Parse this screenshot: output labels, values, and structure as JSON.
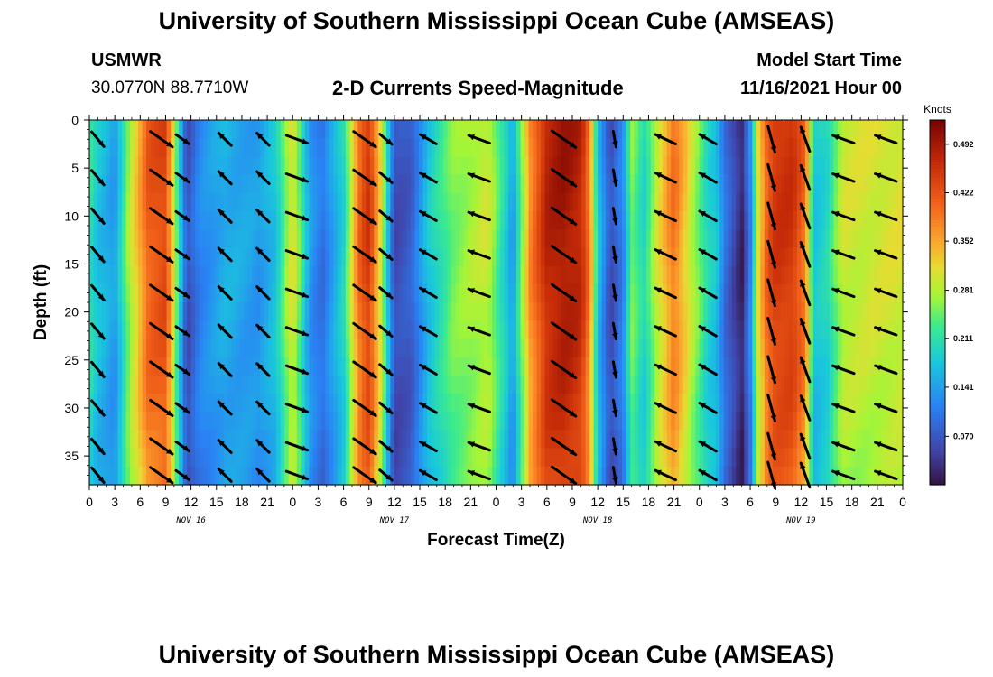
{
  "header": {
    "title_top": "University of Southern Mississippi Ocean Cube (AMSEAS)",
    "station": "USMWR",
    "location": "30.0770N  88.7710W",
    "plot_title": "2-D Currents Speed-Magnitude",
    "model_start_label": "Model Start Time",
    "model_start_value": "11/16/2021 Hour 00",
    "title_bottom": "University of Southern Mississippi Ocean Cube (AMSEAS)"
  },
  "chart_data": {
    "type": "heatmap",
    "title": "2-D Currents Speed-Magnitude",
    "xlabel": "Forecast Time(Z)",
    "ylabel": "Depth (ft)",
    "x_tick_labels": [
      "0",
      "3",
      "6",
      "9",
      "12",
      "15",
      "18",
      "21",
      "0",
      "3",
      "6",
      "9",
      "12",
      "15",
      "18",
      "21",
      "0",
      "3",
      "6",
      "9",
      "12",
      "15",
      "18",
      "21",
      "0",
      "3",
      "6",
      "9",
      "12",
      "15",
      "18",
      "21",
      "0"
    ],
    "day_labels": [
      "NOV 16",
      "NOV 17",
      "NOV 18",
      "NOV 19"
    ],
    "xlim_hours": [
      0,
      96
    ],
    "ylim_ft": [
      0,
      38
    ],
    "y_ticks": [
      0,
      5,
      10,
      15,
      20,
      25,
      30,
      35
    ],
    "colorbar": {
      "unit": "Knots",
      "min": 0.0,
      "max": 0.527,
      "tick_values": [
        0.492,
        0.422,
        0.352,
        0.281,
        0.211,
        0.141,
        0.07
      ],
      "tick_labels": [
        "0.492",
        "0.422",
        "0.352",
        "0.281",
        "0.211",
        "0.141",
        "0.070"
      ]
    },
    "speed_profile": {
      "hours": [
        0,
        1,
        3,
        5,
        7,
        9,
        10,
        11.5,
        13,
        16,
        20,
        22,
        24,
        26,
        27.5,
        30,
        32,
        33,
        34.5,
        36,
        38,
        40,
        43,
        47,
        49,
        50,
        52,
        54,
        56,
        58,
        59,
        60,
        61.5,
        63,
        64,
        65.5,
        67,
        69,
        71,
        73,
        74,
        75,
        77,
        78,
        79,
        80,
        81,
        83,
        84.5,
        85.5,
        87,
        89,
        96
      ],
      "knots": [
        0.22,
        0.18,
        0.14,
        0.3,
        0.42,
        0.44,
        0.3,
        0.06,
        0.12,
        0.16,
        0.14,
        0.18,
        0.32,
        0.14,
        0.1,
        0.2,
        0.42,
        0.46,
        0.3,
        0.06,
        0.08,
        0.18,
        0.26,
        0.3,
        0.2,
        0.14,
        0.38,
        0.48,
        0.5,
        0.48,
        0.4,
        0.18,
        0.06,
        0.12,
        0.26,
        0.2,
        0.3,
        0.4,
        0.3,
        0.2,
        0.18,
        0.1,
        0.02,
        0.12,
        0.32,
        0.42,
        0.46,
        0.46,
        0.4,
        0.18,
        0.2,
        0.3,
        0.31
      ]
    },
    "vectors": {
      "rows_ft": [
        2,
        6,
        10,
        14,
        18,
        22,
        26,
        30,
        34,
        37
      ],
      "note": "Current direction arrows per time column (degrees from east, screen y down) and relative speed",
      "columns": [
        {
          "hour": 1,
          "angle": 50,
          "speed": 0.2
        },
        {
          "hour": 8.5,
          "angle": 35,
          "speed": 0.44
        },
        {
          "hour": 11,
          "angle": 35,
          "speed": 0.1
        },
        {
          "hour": 16,
          "angle": 225,
          "speed": 0.16
        },
        {
          "hour": 20.5,
          "angle": 225,
          "speed": 0.14
        },
        {
          "hour": 24.5,
          "angle": 20,
          "speed": 0.3
        },
        {
          "hour": 32.5,
          "angle": 35,
          "speed": 0.44
        },
        {
          "hour": 35,
          "angle": 40,
          "speed": 0.1
        },
        {
          "hour": 40,
          "angle": 210,
          "speed": 0.18
        },
        {
          "hour": 46,
          "angle": 200,
          "speed": 0.3
        },
        {
          "hour": 56,
          "angle": 35,
          "speed": 0.5
        },
        {
          "hour": 62,
          "angle": 80,
          "speed": 0.1
        },
        {
          "hour": 68,
          "angle": 205,
          "speed": 0.3
        },
        {
          "hour": 73,
          "angle": 210,
          "speed": 0.2
        },
        {
          "hour": 80.5,
          "angle": 75,
          "speed": 0.44
        },
        {
          "hour": 84.5,
          "angle": 250,
          "speed": 0.4
        },
        {
          "hour": 89,
          "angle": 200,
          "speed": 0.3
        },
        {
          "hour": 94,
          "angle": 200,
          "speed": 0.3
        }
      ]
    }
  }
}
